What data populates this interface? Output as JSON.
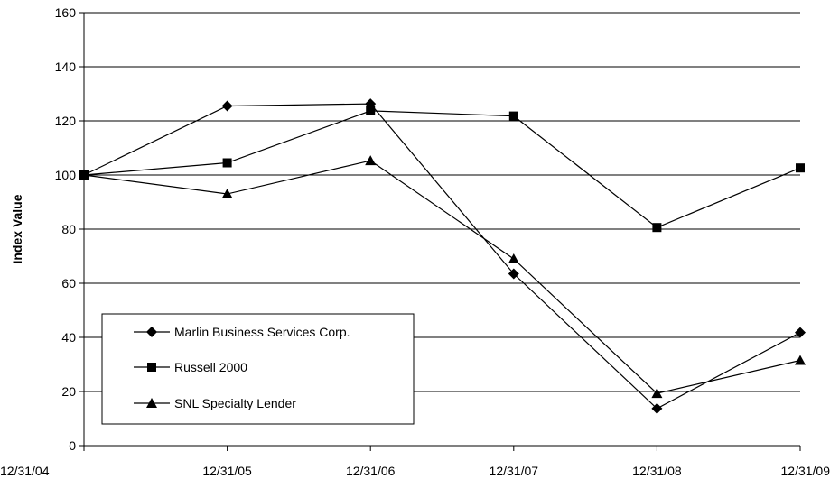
{
  "chart_data": {
    "type": "line",
    "title": "",
    "xlabel": "",
    "ylabel": "Index Value",
    "categories": [
      "12/31/04",
      "12/31/05",
      "12/31/06",
      "12/31/07",
      "12/31/08",
      "12/31/09"
    ],
    "ylim": [
      0,
      160
    ],
    "yticks": [
      0,
      20,
      40,
      60,
      80,
      100,
      120,
      140,
      160
    ],
    "grid": true,
    "legend_position": "bottom-left",
    "series": [
      {
        "name": "Marlin Business Services Corp.",
        "marker": "diamond",
        "values": [
          100,
          125.5,
          126.3,
          63.5,
          13.7,
          41.8
        ]
      },
      {
        "name": "Russell 2000",
        "marker": "square",
        "values": [
          100,
          104.5,
          123.7,
          121.8,
          80.6,
          102.6
        ]
      },
      {
        "name": "SNL Specialty Lender",
        "marker": "triangle",
        "values": [
          100,
          93.0,
          105.3,
          69.0,
          19.3,
          31.5
        ]
      }
    ],
    "colors": {
      "line": "#000000",
      "grid": "#000000",
      "background": "#ffffff"
    }
  }
}
